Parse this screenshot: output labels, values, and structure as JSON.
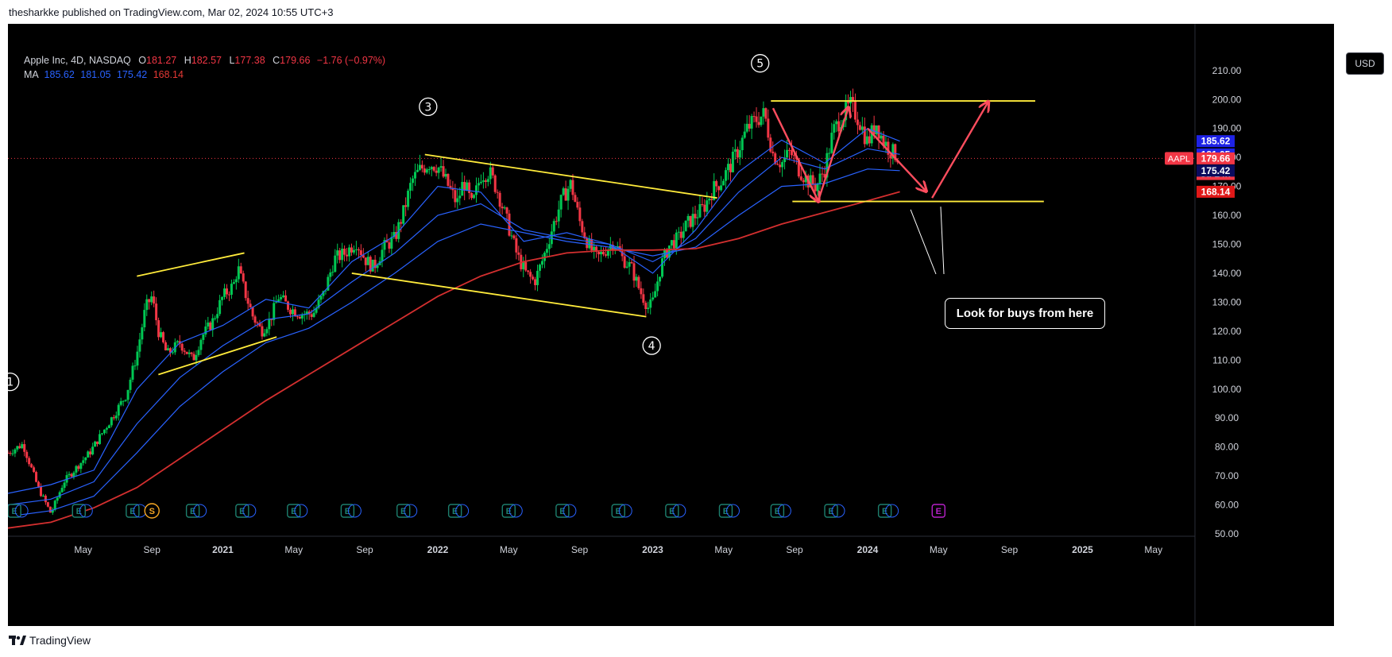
{
  "header": {
    "published_text": "thesharkke published on TradingView.com, Mar 02, 2024 10:55 UTC+3"
  },
  "symbol": {
    "name": "Apple Inc, 4D, NASDAQ",
    "open_label": "O",
    "open": "181.27",
    "high_label": "H",
    "high": "182.57",
    "low_label": "L",
    "low": "177.38",
    "close_label": "C",
    "close": "179.66",
    "change": "−1.76 (−0.97%)"
  },
  "ma_legend": {
    "label": "MA",
    "values": [
      "185.62",
      "181.05",
      "175.42",
      "168.14"
    ]
  },
  "currency": "USD",
  "colors": {
    "background": "#000000",
    "up": "#00c853",
    "down": "#f23645",
    "ma_fast": "#2962ff",
    "ma_slow": "#d32f2f",
    "trendline": "#ffeb3b",
    "arrow": "#ff4d5e"
  },
  "price_tags": [
    {
      "text": "185.62",
      "value": 185.62,
      "bg": "#1e22e6",
      "fg": "#ffffff"
    },
    {
      "text": "181.05",
      "value": 181.05,
      "bg": "#1e22e6",
      "fg": "#ffffff"
    },
    {
      "text": "179.66",
      "value": 179.66,
      "bg": "#f23645",
      "fg": "#ffffff"
    },
    {
      "text": "3d 14h",
      "value": 175.9,
      "bg": "#f23645",
      "fg": "#ffd0d0"
    },
    {
      "text": "175.42",
      "value": 175.42,
      "bg": "#0b0b5e",
      "fg": "#ffffff"
    },
    {
      "text": "168.14",
      "value": 168.14,
      "bg": "#e01818",
      "fg": "#ffffff"
    }
  ],
  "symbol_tag": "AAPL",
  "annotation": {
    "callout": "Look for buys from here"
  },
  "waves": [
    {
      "label": "1",
      "t": 2020.01,
      "p": 102.5
    },
    {
      "label": "3",
      "t": 2021.955,
      "p": 197.5
    },
    {
      "label": "4",
      "t": 2022.995,
      "p": 115
    },
    {
      "label": "5",
      "t": 2023.5,
      "p": 212.5
    }
  ],
  "earnings_markers": {
    "label": "E",
    "times": [
      2020.03,
      2020.33,
      2020.58,
      2020.86,
      2021.09,
      2021.33,
      2021.58,
      2021.84,
      2022.08,
      2022.33,
      2022.58,
      2022.84,
      2023.09,
      2023.34,
      2023.58,
      2023.83,
      2024.08,
      2024.33
    ],
    "split_label": "S",
    "split_time": 2020.67
  },
  "footer": {
    "brand": "TradingView"
  },
  "chart_data": {
    "type": "candlestick",
    "title": "Apple Inc, 4D, NASDAQ",
    "xlabel": "",
    "ylabel": "USD",
    "ylim": [
      50,
      220
    ],
    "xlim": [
      2020.0,
      2025.45
    ],
    "x_ticks": [
      {
        "label": "May",
        "t": 2020.35
      },
      {
        "label": "Sep",
        "t": 2020.67
      },
      {
        "label": "2021",
        "t": 2021.0
      },
      {
        "label": "May",
        "t": 2021.33
      },
      {
        "label": "Sep",
        "t": 2021.66
      },
      {
        "label": "2022",
        "t": 2022.0
      },
      {
        "label": "May",
        "t": 2022.33
      },
      {
        "label": "Sep",
        "t": 2022.66
      },
      {
        "label": "2023",
        "t": 2023.0
      },
      {
        "label": "May",
        "t": 2023.33
      },
      {
        "label": "Sep",
        "t": 2023.66
      },
      {
        "label": "2024",
        "t": 2024.0
      },
      {
        "label": "May",
        "t": 2024.33
      },
      {
        "label": "Sep",
        "t": 2024.66
      },
      {
        "label": "2025",
        "t": 2025.0
      },
      {
        "label": "May",
        "t": 2025.33
      }
    ],
    "y_ticks": [
      50,
      60,
      70,
      80,
      90,
      100,
      110,
      120,
      130,
      140,
      150,
      160,
      170,
      180,
      190,
      200,
      210
    ],
    "price_path": [
      [
        2020.0,
        78
      ],
      [
        2020.07,
        81
      ],
      [
        2020.14,
        66
      ],
      [
        2020.2,
        57
      ],
      [
        2020.26,
        68
      ],
      [
        2020.32,
        73
      ],
      [
        2020.38,
        78
      ],
      [
        2020.44,
        85
      ],
      [
        2020.5,
        92
      ],
      [
        2020.55,
        98
      ],
      [
        2020.6,
        112
      ],
      [
        2020.64,
        128
      ],
      [
        2020.67,
        132
      ],
      [
        2020.7,
        120
      ],
      [
        2020.74,
        112
      ],
      [
        2020.8,
        116
      ],
      [
        2020.86,
        110
      ],
      [
        2020.9,
        118
      ],
      [
        2020.95,
        123
      ],
      [
        2021.0,
        132
      ],
      [
        2021.05,
        136
      ],
      [
        2021.07,
        142
      ],
      [
        2021.1,
        134
      ],
      [
        2021.14,
        125
      ],
      [
        2021.18,
        120
      ],
      [
        2021.22,
        124
      ],
      [
        2021.26,
        132
      ],
      [
        2021.31,
        128
      ],
      [
        2021.36,
        126
      ],
      [
        2021.42,
        126
      ],
      [
        2021.47,
        133
      ],
      [
        2021.52,
        145
      ],
      [
        2021.57,
        147
      ],
      [
        2021.62,
        151
      ],
      [
        2021.66,
        145
      ],
      [
        2021.7,
        142
      ],
      [
        2021.75,
        149
      ],
      [
        2021.8,
        152
      ],
      [
        2021.84,
        161
      ],
      [
        2021.88,
        172
      ],
      [
        2021.92,
        176
      ],
      [
        2021.96,
        178
      ],
      [
        2022.0,
        177
      ],
      [
        2022.05,
        170
      ],
      [
        2022.09,
        164
      ],
      [
        2022.12,
        172
      ],
      [
        2022.16,
        163
      ],
      [
        2022.2,
        174
      ],
      [
        2022.24,
        175
      ],
      [
        2022.28,
        168
      ],
      [
        2022.33,
        156
      ],
      [
        2022.37,
        146
      ],
      [
        2022.41,
        140
      ],
      [
        2022.45,
        137
      ],
      [
        2022.49,
        145
      ],
      [
        2022.53,
        155
      ],
      [
        2022.58,
        166
      ],
      [
        2022.62,
        171
      ],
      [
        2022.66,
        158
      ],
      [
        2022.7,
        150
      ],
      [
        2022.74,
        145
      ],
      [
        2022.78,
        148
      ],
      [
        2022.82,
        151
      ],
      [
        2022.86,
        145
      ],
      [
        2022.9,
        142
      ],
      [
        2022.94,
        134
      ],
      [
        2022.98,
        128
      ],
      [
        2023.0,
        130
      ],
      [
        2023.04,
        143
      ],
      [
        2023.08,
        150
      ],
      [
        2023.12,
        152
      ],
      [
        2023.16,
        157
      ],
      [
        2023.2,
        160
      ],
      [
        2023.24,
        163
      ],
      [
        2023.28,
        169
      ],
      [
        2023.32,
        172
      ],
      [
        2023.36,
        177
      ],
      [
        2023.4,
        183
      ],
      [
        2023.44,
        190
      ],
      [
        2023.48,
        193
      ],
      [
        2023.52,
        195
      ],
      [
        2023.56,
        181
      ],
      [
        2023.6,
        178
      ],
      [
        2023.64,
        182
      ],
      [
        2023.68,
        176
      ],
      [
        2023.72,
        172
      ],
      [
        2023.76,
        170
      ],
      [
        2023.8,
        176
      ],
      [
        2023.84,
        189
      ],
      [
        2023.88,
        194
      ],
      [
        2023.92,
        198
      ],
      [
        2023.96,
        193
      ],
      [
        2024.0,
        185
      ],
      [
        2024.04,
        192
      ],
      [
        2024.07,
        186
      ],
      [
        2024.11,
        182
      ],
      [
        2024.15,
        180
      ]
    ],
    "series": [
      {
        "name": "MA",
        "value": 185.62,
        "color": "#2962ff",
        "values": [
          [
            2020.0,
            64
          ],
          [
            2020.2,
            67
          ],
          [
            2020.4,
            72
          ],
          [
            2020.6,
            100
          ],
          [
            2020.8,
            116
          ],
          [
            2021.0,
            122
          ],
          [
            2021.2,
            131
          ],
          [
            2021.4,
            128
          ],
          [
            2021.6,
            144
          ],
          [
            2021.8,
            153
          ],
          [
            2022.0,
            170
          ],
          [
            2022.2,
            168
          ],
          [
            2022.4,
            151
          ],
          [
            2022.6,
            154
          ],
          [
            2022.8,
            150
          ],
          [
            2023.0,
            140
          ],
          [
            2023.2,
            155
          ],
          [
            2023.4,
            175
          ],
          [
            2023.6,
            186
          ],
          [
            2023.8,
            178
          ],
          [
            2024.0,
            190
          ],
          [
            2024.15,
            185.62
          ]
        ]
      },
      {
        "name": "MA",
        "value": 181.05,
        "color": "#2962ff",
        "values": [
          [
            2020.0,
            60
          ],
          [
            2020.2,
            62
          ],
          [
            2020.4,
            68
          ],
          [
            2020.6,
            88
          ],
          [
            2020.8,
            104
          ],
          [
            2021.0,
            115
          ],
          [
            2021.2,
            124
          ],
          [
            2021.4,
            126
          ],
          [
            2021.6,
            137
          ],
          [
            2021.8,
            147
          ],
          [
            2022.0,
            160
          ],
          [
            2022.2,
            164
          ],
          [
            2022.4,
            155
          ],
          [
            2022.6,
            152
          ],
          [
            2022.8,
            150
          ],
          [
            2023.0,
            144
          ],
          [
            2023.2,
            152
          ],
          [
            2023.4,
            168
          ],
          [
            2023.6,
            180
          ],
          [
            2023.8,
            176
          ],
          [
            2024.0,
            183
          ],
          [
            2024.15,
            181.05
          ]
        ]
      },
      {
        "name": "MA",
        "value": 175.42,
        "color": "#2962ff",
        "values": [
          [
            2020.0,
            56
          ],
          [
            2020.2,
            58
          ],
          [
            2020.4,
            63
          ],
          [
            2020.6,
            78
          ],
          [
            2020.8,
            94
          ],
          [
            2021.0,
            106
          ],
          [
            2021.2,
            116
          ],
          [
            2021.4,
            121
          ],
          [
            2021.6,
            130
          ],
          [
            2021.8,
            140
          ],
          [
            2022.0,
            151
          ],
          [
            2022.2,
            157
          ],
          [
            2022.4,
            154
          ],
          [
            2022.6,
            151
          ],
          [
            2022.8,
            149
          ],
          [
            2023.0,
            146
          ],
          [
            2023.2,
            149
          ],
          [
            2023.4,
            160
          ],
          [
            2023.6,
            170
          ],
          [
            2023.8,
            171
          ],
          [
            2024.0,
            176
          ],
          [
            2024.15,
            175.42
          ]
        ]
      },
      {
        "name": "MA",
        "value": 168.14,
        "color": "#d32f2f",
        "values": [
          [
            2020.0,
            52
          ],
          [
            2020.2,
            54
          ],
          [
            2020.4,
            59
          ],
          [
            2020.6,
            66
          ],
          [
            2020.8,
            76
          ],
          [
            2021.0,
            86
          ],
          [
            2021.2,
            96
          ],
          [
            2021.4,
            105
          ],
          [
            2021.6,
            114
          ],
          [
            2021.8,
            123
          ],
          [
            2022.0,
            132
          ],
          [
            2022.2,
            139
          ],
          [
            2022.4,
            144
          ],
          [
            2022.6,
            147
          ],
          [
            2022.8,
            148
          ],
          [
            2023.0,
            148
          ],
          [
            2023.2,
            148.5
          ],
          [
            2023.4,
            152
          ],
          [
            2023.6,
            157
          ],
          [
            2023.8,
            161
          ],
          [
            2024.0,
            165
          ],
          [
            2024.15,
            168.14
          ]
        ]
      }
    ],
    "drawings": {
      "trendlines": [
        [
          [
            2020.6,
            139
          ],
          [
            2021.1,
            147
          ]
        ],
        [
          [
            2020.7,
            105
          ],
          [
            2021.25,
            118
          ]
        ],
        [
          [
            2021.94,
            181
          ],
          [
            2023.3,
            166
          ]
        ],
        [
          [
            2021.6,
            140
          ],
          [
            2022.97,
            125
          ]
        ],
        [
          [
            2023.55,
            199.5
          ],
          [
            2024.78,
            199.5
          ]
        ],
        [
          [
            2023.65,
            164.8
          ],
          [
            2024.82,
            164.8
          ]
        ]
      ],
      "arrows": [
        [
          [
            2023.56,
            197
          ],
          [
            2023.77,
            165
          ]
        ],
        [
          [
            2023.77,
            165
          ],
          [
            2023.91,
            197
          ]
        ],
        [
          [
            2024.0,
            190
          ],
          [
            2024.27,
            168.5
          ]
        ],
        [
          [
            2024.3,
            166
          ],
          [
            2024.56,
            199
          ]
        ]
      ],
      "callout_pointer": [
        [
          2024.2,
          162
        ],
        [
          2024.34,
          163
        ]
      ]
    }
  }
}
